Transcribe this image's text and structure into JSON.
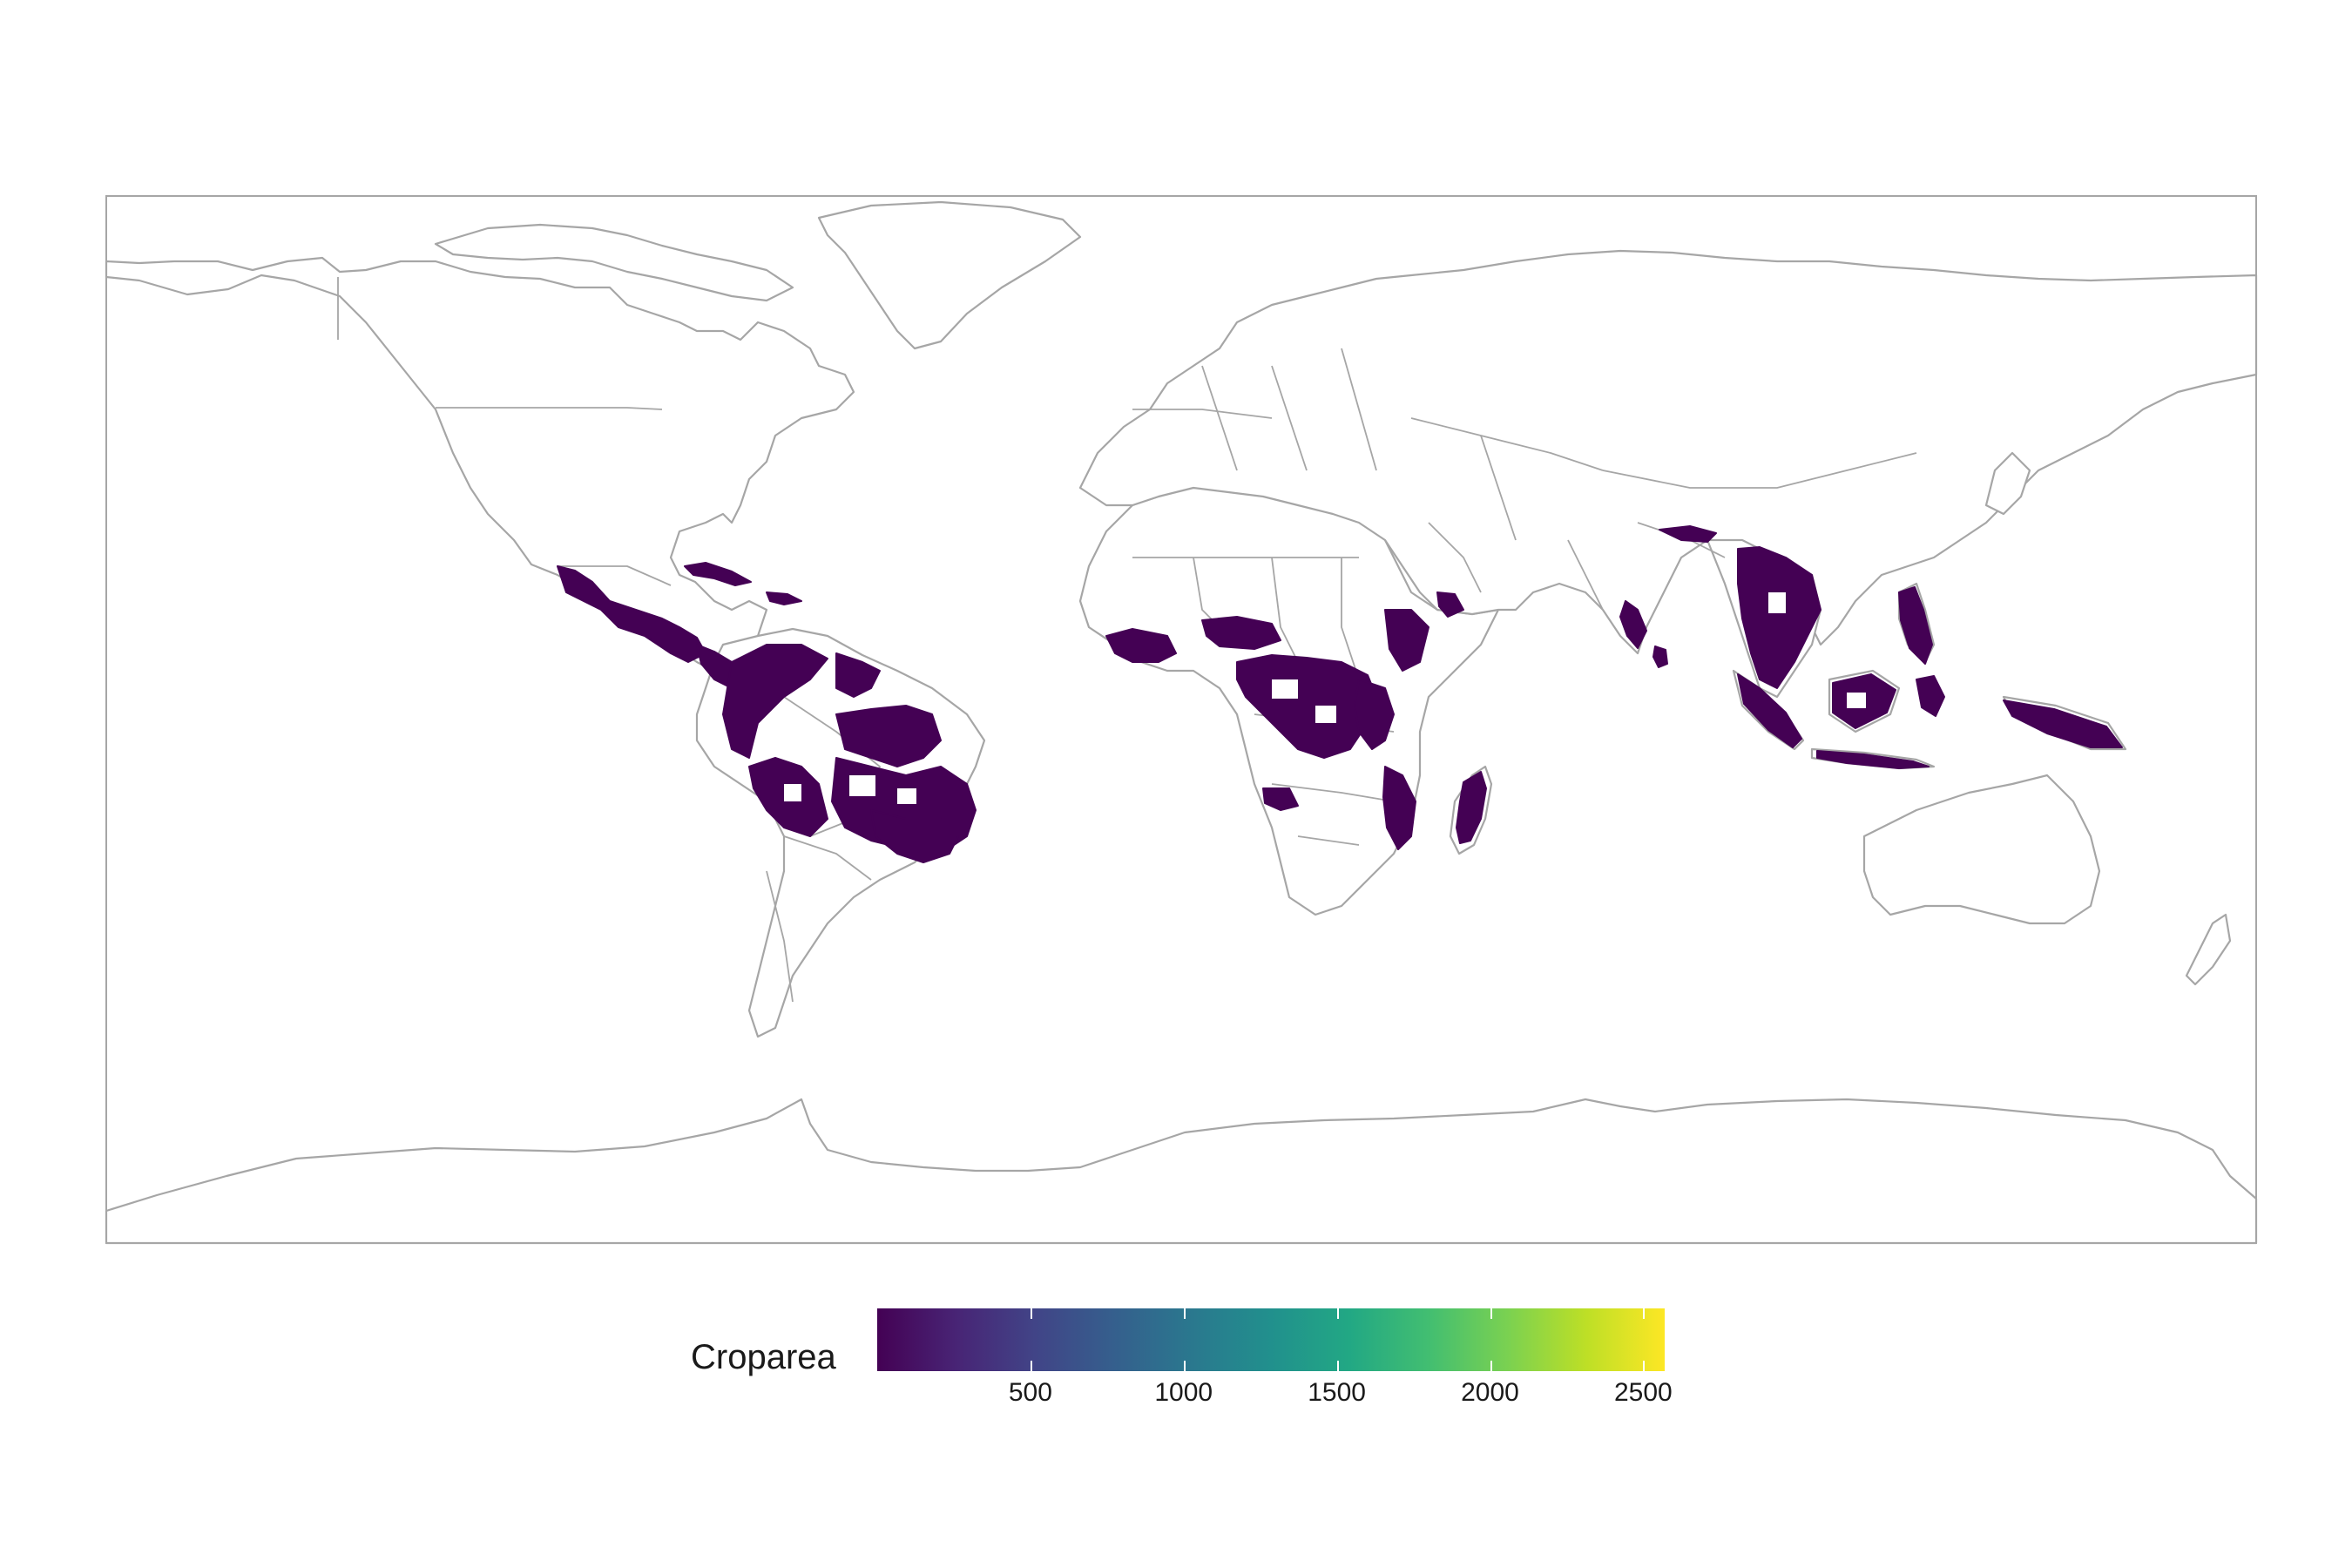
{
  "legend": {
    "title": "Croparea",
    "ticks": [
      "500",
      "1000",
      "1500",
      "2000",
      "2500"
    ],
    "tick_values": [
      500,
      1000,
      1500,
      2000,
      2500
    ],
    "range": [
      0,
      2570
    ],
    "colors": [
      "#440154",
      "#482475",
      "#414487",
      "#355f8d",
      "#2a788e",
      "#21908d",
      "#22a884",
      "#42be71",
      "#7ad151",
      "#bddf26",
      "#fde725"
    ]
  },
  "map": {
    "projection": "equirectangular",
    "land_fill": "#ffffff",
    "border_color": "#a6a6a6",
    "crop_color": "#440154",
    "crop_regions": [
      "Central America",
      "Caribbean",
      "Northern South America",
      "Brazil",
      "West Africa",
      "Central Africa",
      "East Africa",
      "Madagascar",
      "Mozambique",
      "Ethiopia",
      "Yemen",
      "Southern India",
      "Sri Lanka",
      "Southeast Asia",
      "Philippines",
      "Indonesia",
      "Papua New Guinea"
    ]
  }
}
